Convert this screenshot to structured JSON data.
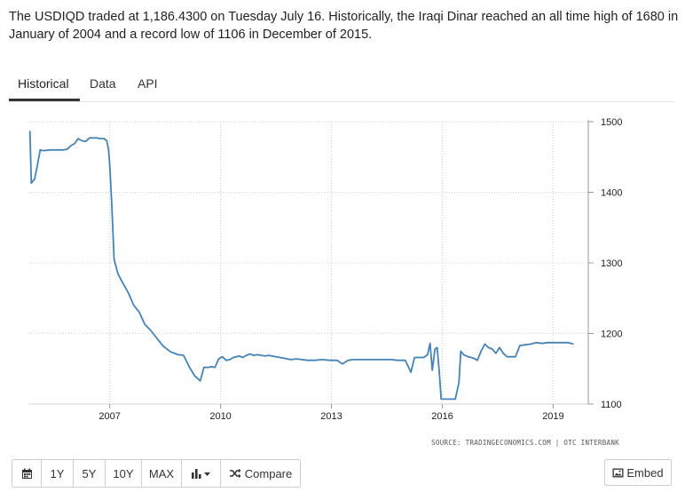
{
  "description": "The USDIQD traded at 1,186.4300 on Tuesday July 16. Historically, the Iraqi Dinar reached an all time high of 1680 in January of 2004 and a record low of 1106 in December of 2015.",
  "tabs": [
    {
      "label": "Historical",
      "active": true
    },
    {
      "label": "Data",
      "active": false
    },
    {
      "label": "API",
      "active": false
    }
  ],
  "source": "SOURCE: TRADINGECONOMICS.COM | OTC INTERBANK",
  "toolbar": {
    "calendar_icon": "calendar-icon",
    "ranges": [
      "1Y",
      "5Y",
      "10Y",
      "MAX"
    ],
    "chart_type_icon": "bar-chart-icon",
    "compare_label": "Compare",
    "compare_icon": "shuffle-icon"
  },
  "embed_label": "Embed",
  "embed_icon": "image-icon",
  "colors": {
    "line": "#4682b4",
    "grid": "#d0d0d0",
    "accent": "#333333"
  },
  "chart_data": {
    "type": "line",
    "title": "",
    "xlabel": "",
    "ylabel": "",
    "ylim": [
      1100,
      1500
    ],
    "yticks": [
      1100,
      1200,
      1300,
      1400,
      1500
    ],
    "xticks": [
      "2007",
      "2010",
      "2013",
      "2016",
      "2019"
    ],
    "xlim": [
      2004.8,
      2019.95
    ],
    "grid": true,
    "y_axis_position": "right",
    "series": [
      {
        "x": [
          2004.84,
          2004.88,
          2004.97,
          2005.05,
          2005.12,
          2005.2,
          2005.4,
          2005.6,
          2005.75,
          2005.85,
          2005.95,
          2006.05,
          2006.15,
          2006.25,
          2006.35,
          2006.45,
          2006.55,
          2006.65,
          2006.75,
          2006.85,
          2006.92,
          2006.97,
          2007.0,
          2007.05,
          2007.12,
          2007.22,
          2007.35,
          2007.5,
          2007.65,
          2007.8,
          2007.95,
          2008.1,
          2008.25,
          2008.45,
          2008.65,
          2008.85,
          2009.0,
          2009.15,
          2009.3,
          2009.45,
          2009.55,
          2009.65,
          2009.75,
          2009.85,
          2009.95,
          2010.05,
          2010.15,
          2010.25,
          2010.35,
          2010.5,
          2010.6,
          2010.7,
          2010.8,
          2010.9,
          2011.0,
          2011.1,
          2011.2,
          2011.3,
          2011.5,
          2011.7,
          2011.9,
          2012.05,
          2012.2,
          2012.35,
          2012.55,
          2012.75,
          2012.95,
          2013.15,
          2013.3,
          2013.45,
          2013.6,
          2013.8,
          2014.0,
          2014.2,
          2014.4,
          2014.6,
          2014.8,
          2015.0,
          2015.15,
          2015.25,
          2015.35,
          2015.5,
          2015.6,
          2015.67,
          2015.73,
          2015.8,
          2015.86,
          2015.92,
          2015.97,
          2016.05,
          2016.2,
          2016.35,
          2016.45,
          2016.5,
          2016.58,
          2016.7,
          2016.85,
          2016.95,
          2017.05,
          2017.15,
          2017.25,
          2017.35,
          2017.45,
          2017.55,
          2017.65,
          2017.75,
          2017.9,
          2017.98,
          2018.1,
          2018.25,
          2018.4,
          2018.55,
          2018.7,
          2018.85,
          2019.0,
          2019.2,
          2019.4,
          2019.55
        ],
        "y": [
          1487,
          1413,
          1419,
          1440,
          1460,
          1459,
          1460,
          1460,
          1460,
          1461,
          1466,
          1469,
          1476,
          1473,
          1472,
          1477,
          1477,
          1477,
          1476,
          1476,
          1473,
          1460,
          1440,
          1390,
          1305,
          1285,
          1272,
          1258,
          1240,
          1230,
          1213,
          1205,
          1195,
          1182,
          1174,
          1170,
          1169,
          1153,
          1140,
          1133,
          1152,
          1152,
          1153,
          1152,
          1164,
          1167,
          1162,
          1163,
          1166,
          1168,
          1166,
          1169,
          1171,
          1169,
          1170,
          1169,
          1168,
          1169,
          1167,
          1165,
          1163,
          1164,
          1163,
          1162,
          1162,
          1163,
          1162,
          1162,
          1157,
          1162,
          1163,
          1163,
          1163,
          1163,
          1163,
          1163,
          1162,
          1162,
          1145,
          1166,
          1166,
          1166,
          1170,
          1186,
          1148,
          1178,
          1180,
          1145,
          1107,
          1107,
          1107,
          1107,
          1130,
          1175,
          1170,
          1167,
          1165,
          1162,
          1175,
          1185,
          1180,
          1178,
          1172,
          1180,
          1172,
          1167,
          1167,
          1167,
          1183,
          1184,
          1185,
          1187,
          1186,
          1187,
          1187,
          1187,
          1187,
          1185
        ]
      }
    ]
  }
}
